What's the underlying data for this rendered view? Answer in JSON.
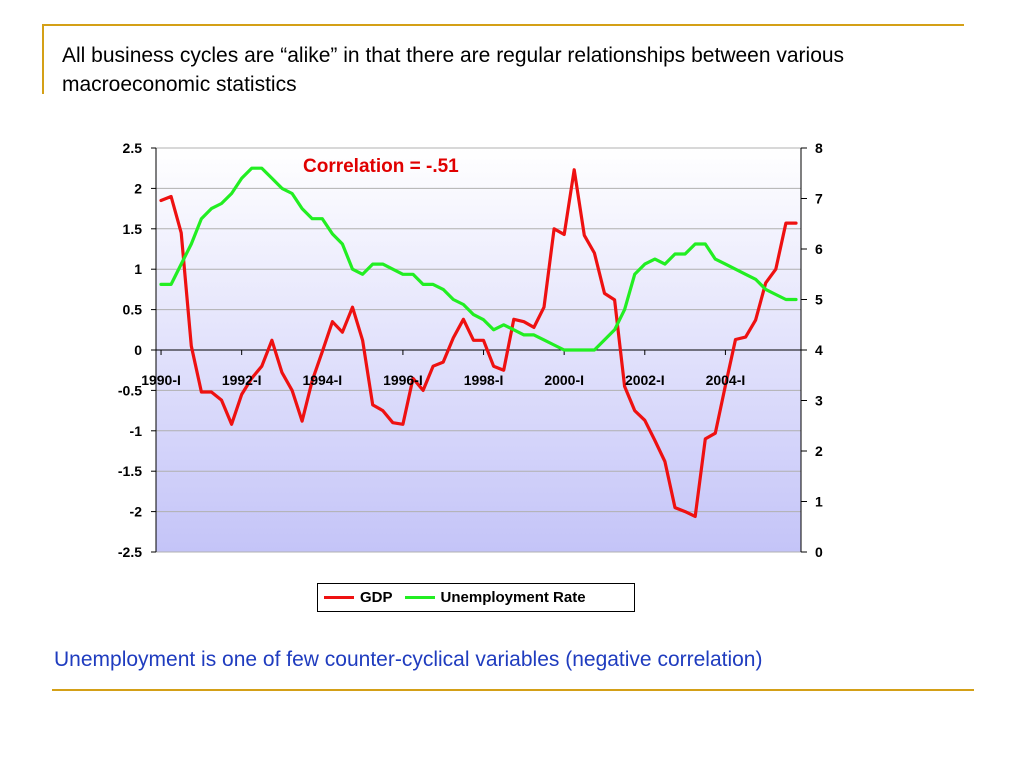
{
  "slide": {
    "title": "All business cycles are “alike” in that there are regular relationships between various macroeconomic statistics",
    "footer": "Unemployment is one of few counter-cyclical variables (negative correlation)",
    "accent_color": "#d4a017",
    "footer_color": "#1f3cbf"
  },
  "chart_data": {
    "type": "line",
    "annotation": "Correlation = -.51",
    "x": [
      "1990-I",
      "1990-II",
      "1990-III",
      "1990-IV",
      "1991-I",
      "1991-II",
      "1991-III",
      "1991-IV",
      "1992-I",
      "1992-II",
      "1992-III",
      "1992-IV",
      "1993-I",
      "1993-II",
      "1993-III",
      "1993-IV",
      "1994-I",
      "1994-II",
      "1994-III",
      "1994-IV",
      "1995-I",
      "1995-II",
      "1995-III",
      "1995-IV",
      "1996-I",
      "1996-II",
      "1996-III",
      "1996-IV",
      "1997-I",
      "1997-II",
      "1997-III",
      "1997-IV",
      "1998-I",
      "1998-II",
      "1998-III",
      "1998-IV",
      "1999-I",
      "1999-II",
      "1999-III",
      "1999-IV",
      "2000-I",
      "2000-II",
      "2000-III",
      "2000-IV",
      "2001-I",
      "2001-II",
      "2001-III",
      "2001-IV",
      "2002-I",
      "2002-II",
      "2002-III",
      "2002-IV",
      "2003-I",
      "2003-II",
      "2003-III",
      "2003-IV",
      "2004-I",
      "2004-II",
      "2004-III",
      "2004-IV",
      "2005-I",
      "2005-II",
      "2005-III",
      "2005-IV"
    ],
    "x_tick_labels": [
      "1990-I",
      "1992-I",
      "1994-I",
      "1996-I",
      "1998-I",
      "2000-I",
      "2002-I",
      "2004-I"
    ],
    "y_left": {
      "lim": [
        -2.5,
        2.5
      ],
      "ticks": [
        "2.5",
        "2",
        "1.5",
        "1",
        "0.5",
        "0",
        "-0.5",
        "-1",
        "-1.5",
        "-2",
        "-2.5"
      ]
    },
    "y_right": {
      "lim": [
        0,
        8
      ],
      "ticks": [
        "8",
        "7",
        "6",
        "5",
        "4",
        "3",
        "2",
        "1",
        "0"
      ]
    },
    "legend_position": "bottom",
    "grid": true,
    "series": [
      {
        "name": "GDP",
        "axis": "left",
        "color": "#ee1111",
        "values": [
          1.85,
          1.9,
          1.45,
          0.05,
          -0.52,
          -0.52,
          -0.62,
          -0.92,
          -0.55,
          -0.35,
          -0.2,
          0.12,
          -0.28,
          -0.5,
          -0.88,
          -0.38,
          -0.02,
          0.35,
          0.22,
          0.53,
          0.12,
          -0.68,
          -0.75,
          -0.9,
          -0.92,
          -0.35,
          -0.5,
          -0.2,
          -0.15,
          0.15,
          0.38,
          0.12,
          0.12,
          -0.2,
          -0.25,
          0.38,
          0.35,
          0.28,
          0.53,
          1.5,
          1.43,
          2.23,
          1.42,
          1.2,
          0.7,
          0.62,
          -0.45,
          -0.75,
          -0.87,
          -1.12,
          -1.38,
          -1.95,
          -2.0,
          -2.06,
          -1.1,
          -1.03,
          -0.44,
          0.13,
          0.16,
          0.37,
          0.83,
          1.0,
          1.57,
          1.57
        ]
      },
      {
        "name": "Unemployment Rate",
        "axis": "right",
        "color": "#22ee22",
        "values": [
          5.3,
          5.3,
          5.7,
          6.1,
          6.6,
          6.8,
          6.9,
          7.1,
          7.4,
          7.6,
          7.6,
          7.4,
          7.2,
          7.1,
          6.8,
          6.6,
          6.6,
          6.3,
          6.1,
          5.6,
          5.5,
          5.7,
          5.7,
          5.6,
          5.5,
          5.5,
          5.3,
          5.3,
          5.2,
          5.0,
          4.9,
          4.7,
          4.6,
          4.4,
          4.5,
          4.4,
          4.3,
          4.3,
          4.2,
          4.1,
          4.0,
          4.0,
          4.0,
          4.0,
          4.2,
          4.4,
          4.8,
          5.5,
          5.7,
          5.8,
          5.7,
          5.9,
          5.9,
          6.1,
          6.1,
          5.8,
          5.7,
          5.6,
          5.5,
          5.4,
          5.2,
          5.1,
          5.0,
          5.0
        ]
      }
    ]
  }
}
